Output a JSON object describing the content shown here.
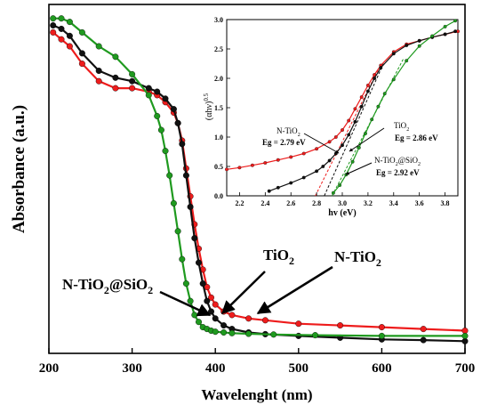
{
  "chart_data": [
    {
      "type": "line",
      "xlabel": "Wavelenght (nm)",
      "ylabel": "Absorbance (a.u.)",
      "xlim": [
        200,
        700
      ],
      "ylim": [
        0.05,
        1.05
      ],
      "x_ticks": [
        "200",
        "300",
        "400",
        "500",
        "600",
        "700"
      ],
      "y_ticks_shown": false,
      "grid": false,
      "colors": {
        "N-TiO2": "#ee1c1c",
        "TiO2": "#111111",
        "N-TiO2@SiO2": "#1f9a1f"
      },
      "series": [
        {
          "key": "N-TiO2",
          "name": "N-TiO2",
          "x": [
            205,
            215,
            225,
            240,
            260,
            280,
            300,
            320,
            330,
            340,
            350,
            355,
            360,
            365,
            370,
            375,
            380,
            385,
            390,
            395,
            400,
            410,
            420,
            440,
            460,
            500,
            550,
            600,
            650,
            700
          ],
          "y": [
            0.97,
            0.95,
            0.93,
            0.88,
            0.83,
            0.81,
            0.81,
            0.8,
            0.79,
            0.77,
            0.74,
            0.71,
            0.66,
            0.58,
            0.5,
            0.42,
            0.35,
            0.29,
            0.24,
            0.21,
            0.19,
            0.17,
            0.16,
            0.15,
            0.145,
            0.135,
            0.13,
            0.125,
            0.12,
            0.115
          ]
        },
        {
          "key": "TiO2",
          "name": "TiO2",
          "x": [
            205,
            215,
            225,
            240,
            260,
            280,
            300,
            320,
            330,
            340,
            350,
            355,
            360,
            365,
            370,
            375,
            380,
            385,
            390,
            395,
            400,
            410,
            420,
            440,
            460,
            500,
            550,
            600,
            650,
            700
          ],
          "y": [
            0.99,
            0.98,
            0.96,
            0.91,
            0.86,
            0.84,
            0.83,
            0.81,
            0.8,
            0.78,
            0.75,
            0.71,
            0.65,
            0.56,
            0.47,
            0.38,
            0.31,
            0.25,
            0.2,
            0.17,
            0.15,
            0.13,
            0.12,
            0.11,
            0.105,
            0.1,
            0.095,
            0.09,
            0.088,
            0.085
          ]
        },
        {
          "key": "N-TiO2@SiO2",
          "name": "N-TiO2@SiO2",
          "x": [
            205,
            215,
            225,
            240,
            260,
            280,
            300,
            320,
            330,
            335,
            340,
            345,
            350,
            355,
            360,
            365,
            370,
            375,
            380,
            385,
            390,
            395,
            400,
            410,
            420,
            440,
            470,
            520,
            600,
            700
          ],
          "y": [
            1.01,
            1.01,
            1.0,
            0.97,
            0.93,
            0.9,
            0.85,
            0.79,
            0.73,
            0.69,
            0.63,
            0.56,
            0.48,
            0.4,
            0.32,
            0.25,
            0.2,
            0.16,
            0.14,
            0.125,
            0.12,
            0.115,
            0.112,
            0.11,
            0.108,
            0.106,
            0.104,
            0.102,
            0.1,
            0.1
          ]
        }
      ],
      "annotations": [
        {
          "key": "ann_nts",
          "base": "N-TiO",
          "sub1": "2",
          "mid": "@SiO",
          "sub2": "2",
          "tail": ""
        },
        {
          "key": "ann_t",
          "base": "TiO",
          "sub1": "2",
          "mid": "",
          "sub2": "",
          "tail": ""
        },
        {
          "key": "ann_nt",
          "base": "N-TiO",
          "sub1": "2",
          "mid": "",
          "sub2": "",
          "tail": ""
        }
      ]
    },
    {
      "type": "line",
      "xlabel": "hv (eV)",
      "ylabel_base": "(αhν)",
      "ylabel_sup": "0.5",
      "xlim": [
        2.1,
        3.9
      ],
      "ylim": [
        0.0,
        3.0
      ],
      "x_ticks": [
        "2.2",
        "2.4",
        "2.6",
        "2.8",
        "3.0",
        "3.2",
        "3.4",
        "3.6",
        "3.8"
      ],
      "y_ticks": [
        "0.0",
        "0.5",
        "1.0",
        "1.5",
        "2.0",
        "2.5",
        "3.0"
      ],
      "grid": false,
      "series": [
        {
          "key": "N-TiO2",
          "x": [
            2.1,
            2.2,
            2.3,
            2.4,
            2.5,
            2.6,
            2.7,
            2.8,
            2.9,
            2.95,
            3.0,
            3.05,
            3.1,
            3.15,
            3.2,
            3.25,
            3.3,
            3.4,
            3.5,
            3.6,
            3.7,
            3.8,
            3.9
          ],
          "y": [
            0.45,
            0.48,
            0.52,
            0.56,
            0.61,
            0.66,
            0.72,
            0.8,
            0.92,
            1.0,
            1.12,
            1.28,
            1.48,
            1.68,
            1.88,
            2.06,
            2.22,
            2.45,
            2.58,
            2.64,
            2.7,
            2.75,
            2.8
          ]
        },
        {
          "key": "TiO2",
          "x": [
            2.43,
            2.5,
            2.6,
            2.7,
            2.8,
            2.85,
            2.9,
            2.95,
            3.0,
            3.05,
            3.1,
            3.15,
            3.2,
            3.25,
            3.3,
            3.4,
            3.5,
            3.6,
            3.7,
            3.8,
            3.88
          ],
          "y": [
            0.08,
            0.14,
            0.22,
            0.31,
            0.42,
            0.5,
            0.6,
            0.72,
            0.86,
            1.04,
            1.26,
            1.52,
            1.78,
            2.0,
            2.18,
            2.42,
            2.56,
            2.64,
            2.7,
            2.75,
            2.8
          ]
        },
        {
          "key": "N-TiO2@SiO2",
          "x": [
            2.93,
            2.98,
            3.03,
            3.08,
            3.13,
            3.18,
            3.23,
            3.28,
            3.33,
            3.4,
            3.5,
            3.6,
            3.7,
            3.8,
            3.88
          ],
          "y": [
            0.05,
            0.18,
            0.36,
            0.58,
            0.82,
            1.06,
            1.3,
            1.52,
            1.74,
            1.98,
            2.3,
            2.55,
            2.72,
            2.88,
            2.98
          ]
        }
      ],
      "tangents": [
        {
          "key": "N-TiO2",
          "x": [
            2.79,
            3.28
          ],
          "y": [
            0.0,
            2.15
          ]
        },
        {
          "key": "TiO2",
          "x": [
            2.86,
            3.32
          ],
          "y": [
            0.0,
            2.25
          ]
        },
        {
          "key": "N-TiO2@SiO2",
          "x": [
            2.92,
            3.48
          ],
          "y": [
            0.0,
            2.35
          ]
        }
      ],
      "annotations": [
        {
          "key": "inset_nt",
          "name_base": "N-TiO",
          "name_sub": "2",
          "eg": "Eg = 2.79 eV"
        },
        {
          "key": "inset_t",
          "name_base": "TiO",
          "name_sub": "2",
          "eg": "Eg = 2.86 eV"
        },
        {
          "key": "inset_nts",
          "name_base": "N-TiO",
          "name_sub": "2",
          "name_mid": "@SiO",
          "name_sub2": "2",
          "eg": "Eg = 2.92 eV"
        }
      ]
    }
  ]
}
